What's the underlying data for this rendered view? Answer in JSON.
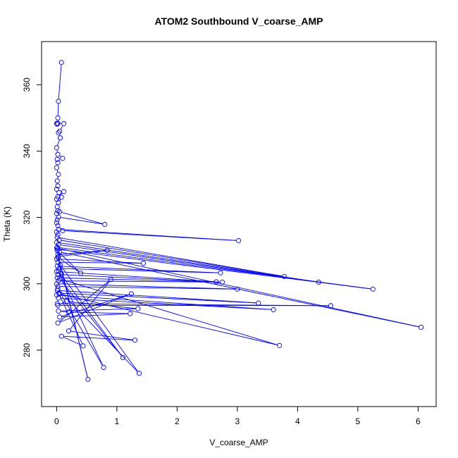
{
  "chart_data": {
    "type": "line",
    "title": "ATOM2 Southbound V_coarse_AMP",
    "xlabel": "V_coarse_AMP",
    "ylabel": "Theta (K)",
    "xlim": [
      -0.25,
      6.3
    ],
    "ylim": [
      263,
      373
    ],
    "x_ticks": [
      0,
      1,
      2,
      3,
      4,
      5,
      6
    ],
    "y_ticks": [
      280,
      300,
      320,
      340,
      360
    ],
    "grid": false,
    "legend": "none",
    "colors": {
      "series": "#0000ff",
      "axis": "#000000"
    },
    "series": [
      {
        "marker": "open-circle",
        "points": [
          [
            0.08,
            366.7
          ],
          [
            0.03,
            355
          ],
          [
            0.02,
            350
          ],
          [
            0.02,
            348.4
          ],
          [
            0.0,
            348.3
          ],
          [
            0.01,
            348.1
          ],
          [
            0.12,
            348.3
          ],
          [
            0.05,
            346
          ],
          [
            0.03,
            345.5
          ],
          [
            0.06,
            344
          ],
          [
            0.0,
            341
          ],
          [
            0.02,
            339
          ],
          [
            0.1,
            337.8
          ],
          [
            0.01,
            337.5
          ],
          [
            0.02,
            336.5
          ],
          [
            0.0,
            335
          ],
          [
            0.03,
            333
          ],
          [
            0.01,
            331
          ],
          [
            0.02,
            329.5
          ],
          [
            0.0,
            328.5
          ],
          [
            0.04,
            327.5
          ],
          [
            0.12,
            327.8
          ],
          [
            0.02,
            326.2
          ],
          [
            0.0,
            325.5
          ],
          [
            0.08,
            326.1
          ],
          [
            0.03,
            324.5
          ],
          [
            0.01,
            323.2
          ],
          [
            0.02,
            322
          ],
          [
            0.0,
            321.2
          ],
          [
            0.05,
            321.7
          ],
          [
            0.8,
            317.9
          ],
          [
            0.03,
            320.1
          ],
          [
            0.01,
            319.3
          ],
          [
            0.0,
            318.4
          ],
          [
            0.02,
            317.5
          ],
          [
            0.1,
            316
          ],
          [
            3.02,
            313.0
          ],
          [
            0.03,
            316.4
          ],
          [
            0.0,
            315.6
          ],
          [
            0.02,
            314.8
          ],
          [
            0.01,
            314.0
          ],
          [
            3.78,
            302.2
          ],
          [
            0.04,
            313.2
          ],
          [
            0.0,
            312.5
          ],
          [
            4.35,
            300.5
          ],
          [
            0.03,
            311.8
          ],
          [
            0.01,
            311.0
          ],
          [
            5.25,
            298.4
          ],
          [
            0.02,
            310.4
          ],
          [
            0.0,
            310.8
          ],
          [
            6.05,
            286.9
          ],
          [
            0.05,
            309.6
          ],
          [
            0.02,
            308.8
          ],
          [
            0.84,
            310.1
          ],
          [
            0.03,
            308.2
          ],
          [
            0.0,
            307.5
          ],
          [
            1.44,
            306.2
          ],
          [
            0.02,
            306.5
          ],
          [
            0.01,
            305.3
          ],
          [
            2.72,
            303.3
          ],
          [
            0.04,
            304.6
          ],
          [
            0.0,
            303.7
          ],
          [
            2.65,
            300.6
          ],
          [
            0.02,
            302.8
          ],
          [
            0.01,
            301.8
          ],
          [
            2.75,
            300.5
          ],
          [
            0.03,
            300.9
          ],
          [
            0.0,
            300.0
          ],
          [
            3.0,
            298.4
          ],
          [
            0.02,
            299.2
          ],
          [
            0.01,
            298.0
          ],
          [
            3.35,
            294.2
          ],
          [
            0.04,
            297.2
          ],
          [
            0.0,
            296.6
          ],
          [
            3.6,
            292.2
          ],
          [
            0.03,
            295.7
          ],
          [
            0.01,
            294.0
          ],
          [
            4.55,
            293.4
          ],
          [
            0.02,
            293.5
          ],
          [
            0.16,
            294.7
          ],
          [
            1.35,
            292.5
          ],
          [
            0.03,
            291.8
          ],
          [
            0.2,
            291.5
          ],
          [
            1.22,
            291.0
          ],
          [
            0.05,
            290.0
          ],
          [
            1.24,
            297.0
          ],
          [
            0.02,
            288.2
          ],
          [
            0.9,
            301.3
          ],
          [
            0.2,
            285.8
          ],
          [
            1.3,
            283.0
          ],
          [
            0.08,
            284.2
          ],
          [
            0.44,
            281.3
          ],
          [
            0.04,
            297.0
          ],
          [
            3.7,
            281.4
          ],
          [
            0.05,
            301.5
          ],
          [
            1.1,
            277.8
          ],
          [
            0.03,
            303.8
          ],
          [
            0.78,
            274.8
          ],
          [
            0.02,
            298.5
          ],
          [
            1.37,
            273.0
          ],
          [
            0.06,
            305.7
          ],
          [
            0.52,
            271.2
          ],
          [
            0.01,
            310.0
          ],
          [
            0.4,
            303.2
          ],
          [
            0.02,
            308.0
          ],
          [
            0.08,
            302.9
          ]
        ]
      }
    ]
  }
}
